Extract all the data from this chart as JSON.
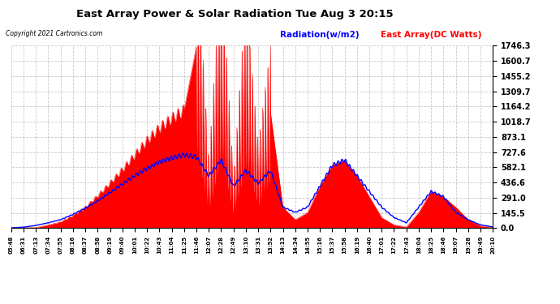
{
  "title": "East Array Power & Solar Radiation Tue Aug 3 20:15",
  "copyright": "Copyright 2021 Cartronics.com",
  "legend_radiation": "Radiation(w/m2)",
  "legend_east": "East Array(DC Watts)",
  "radiation_color": "blue",
  "east_color": "red",
  "background_color": "#ffffff",
  "grid_color": "#bbbbbb",
  "yticks": [
    0.0,
    145.5,
    291.0,
    436.6,
    582.1,
    727.6,
    873.1,
    1018.7,
    1164.2,
    1309.7,
    1455.2,
    1600.7,
    1746.3
  ],
  "ytick_labels": [
    "0.0",
    "145.5",
    "291.0",
    "436.6",
    "582.1",
    "727.6",
    "873.1",
    "1018.7",
    "1164.2",
    "1309.7",
    "1455.2",
    "1600.7",
    "1746.3"
  ],
  "xtick_labels": [
    "05:48",
    "06:31",
    "07:13",
    "07:34",
    "07:55",
    "08:16",
    "08:37",
    "08:58",
    "09:19",
    "09:40",
    "10:01",
    "10:22",
    "10:43",
    "11:04",
    "11:25",
    "11:46",
    "12:07",
    "12:28",
    "12:49",
    "13:10",
    "13:31",
    "13:52",
    "14:13",
    "14:34",
    "14:55",
    "15:16",
    "15:37",
    "15:58",
    "16:19",
    "16:40",
    "17:01",
    "17:22",
    "17:43",
    "18:04",
    "18:25",
    "18:46",
    "19:07",
    "19:28",
    "19:49",
    "20:10"
  ],
  "ymax": 1746.3,
  "ymin": 0.0
}
